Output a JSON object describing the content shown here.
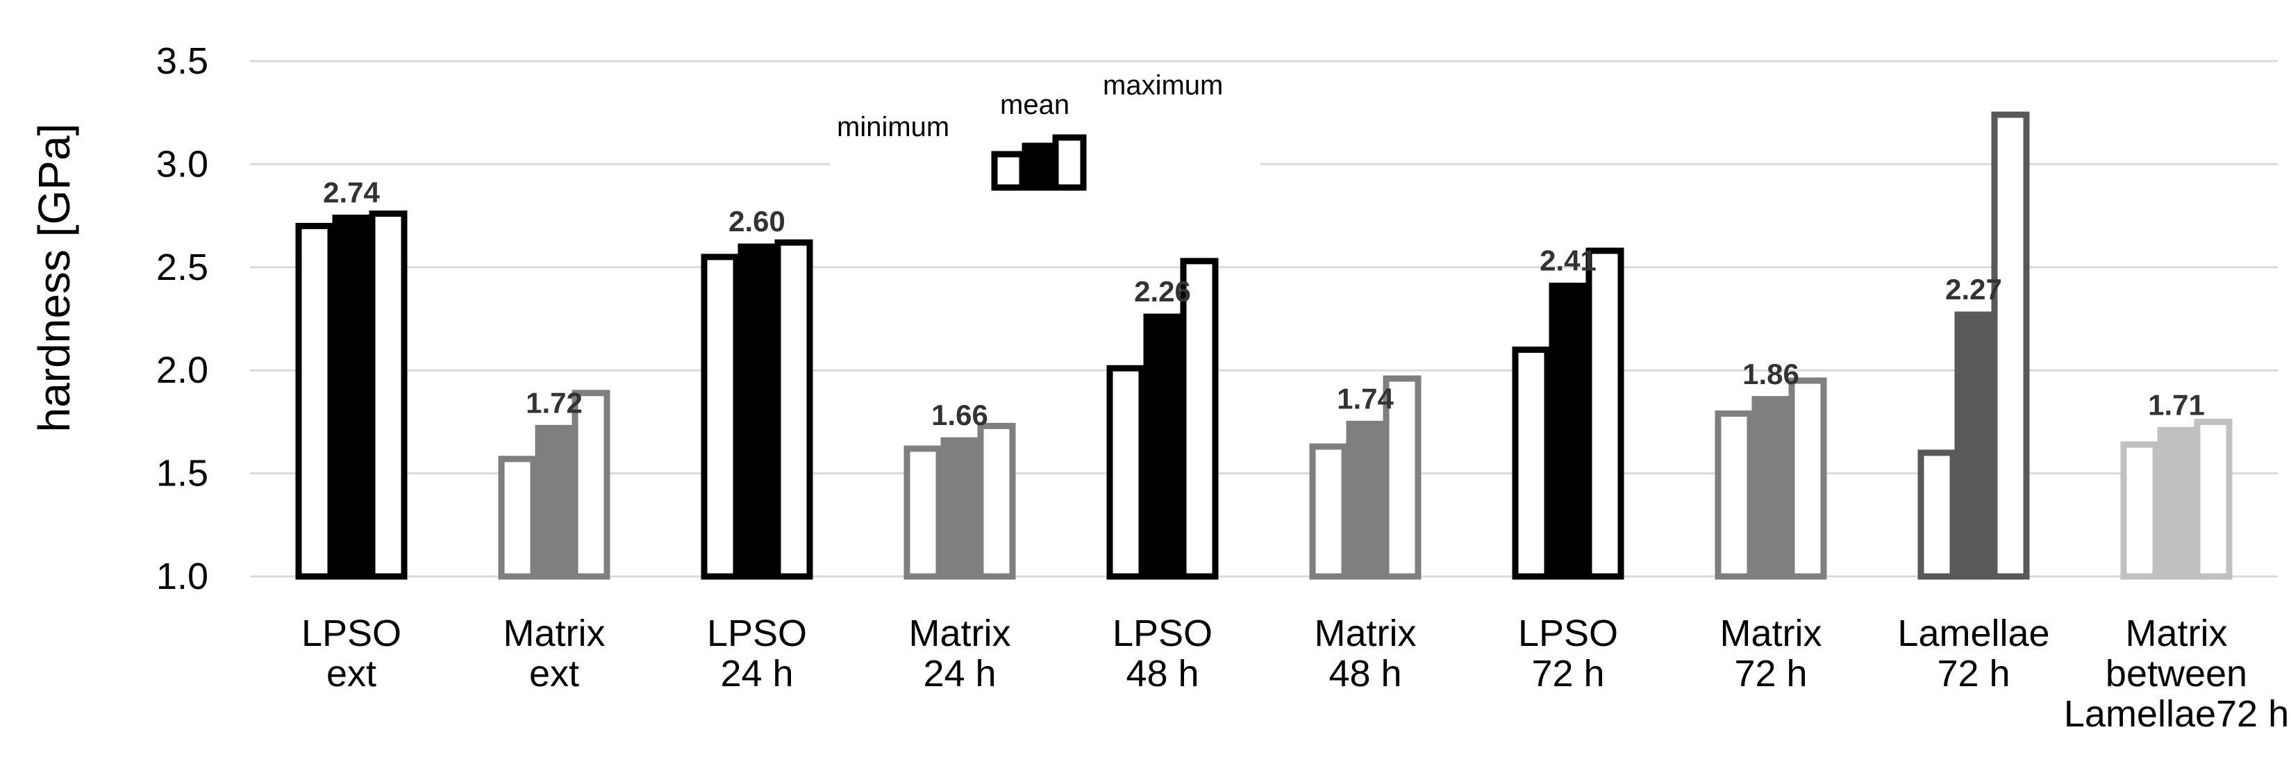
{
  "chart_data": {
    "type": "bar",
    "title": "",
    "xlabel": "",
    "ylabel": "hardness [GPa]",
    "ylim": [
      1.0,
      3.5
    ],
    "yticks": [
      "1.0",
      "1.5",
      "2.0",
      "2.5",
      "3.0",
      "3.5"
    ],
    "grid": true,
    "series_names": [
      "minimum",
      "mean",
      "maximum"
    ],
    "legend": {
      "position": "top-center",
      "labels": {
        "minimum": "minimum",
        "mean": "mean",
        "maximum": "maximum"
      }
    },
    "categories": [
      {
        "lines": [
          "LPSO",
          "ext"
        ],
        "min": 2.7,
        "mean": 2.74,
        "max": 2.76,
        "mean_label": "2.74",
        "color": "#000000",
        "mean_fill": "#000000"
      },
      {
        "lines": [
          "Matrix",
          "ext"
        ],
        "min": 1.57,
        "mean": 1.72,
        "max": 1.89,
        "mean_label": "1.72",
        "color": "#7f7f7f",
        "mean_fill": "#7f7f7f"
      },
      {
        "lines": [
          "LPSO",
          "24 h"
        ],
        "min": 2.55,
        "mean": 2.6,
        "max": 2.62,
        "mean_label": "2.60",
        "color": "#000000",
        "mean_fill": "#000000"
      },
      {
        "lines": [
          "Matrix",
          "24 h"
        ],
        "min": 1.62,
        "mean": 1.66,
        "max": 1.73,
        "mean_label": "1.66",
        "color": "#7f7f7f",
        "mean_fill": "#7f7f7f"
      },
      {
        "lines": [
          "LPSO",
          "48 h"
        ],
        "min": 2.01,
        "mean": 2.26,
        "max": 2.53,
        "mean_label": "2.26",
        "color": "#000000",
        "mean_fill": "#000000"
      },
      {
        "lines": [
          "Matrix",
          "48 h"
        ],
        "min": 1.63,
        "mean": 1.74,
        "max": 1.96,
        "mean_label": "1.74",
        "color": "#7f7f7f",
        "mean_fill": "#7f7f7f"
      },
      {
        "lines": [
          "LPSO",
          "72 h"
        ],
        "min": 2.1,
        "mean": 2.41,
        "max": 2.58,
        "mean_label": "2.41",
        "color": "#000000",
        "mean_fill": "#000000"
      },
      {
        "lines": [
          "Matrix",
          "72 h"
        ],
        "min": 1.79,
        "mean": 1.86,
        "max": 1.95,
        "mean_label": "1.86",
        "color": "#7f7f7f",
        "mean_fill": "#7f7f7f"
      },
      {
        "lines": [
          "Lamellae",
          "72 h"
        ],
        "min": 1.6,
        "mean": 2.27,
        "max": 3.24,
        "mean_label": "2.27",
        "color": "#595959",
        "mean_fill": "#595959"
      },
      {
        "lines": [
          "Matrix",
          "between",
          "Lamellae72 h"
        ],
        "min": 1.64,
        "mean": 1.71,
        "max": 1.75,
        "mean_label": "1.71",
        "color": "#c0c0c0",
        "mean_fill": "#c0c0c0"
      }
    ]
  }
}
